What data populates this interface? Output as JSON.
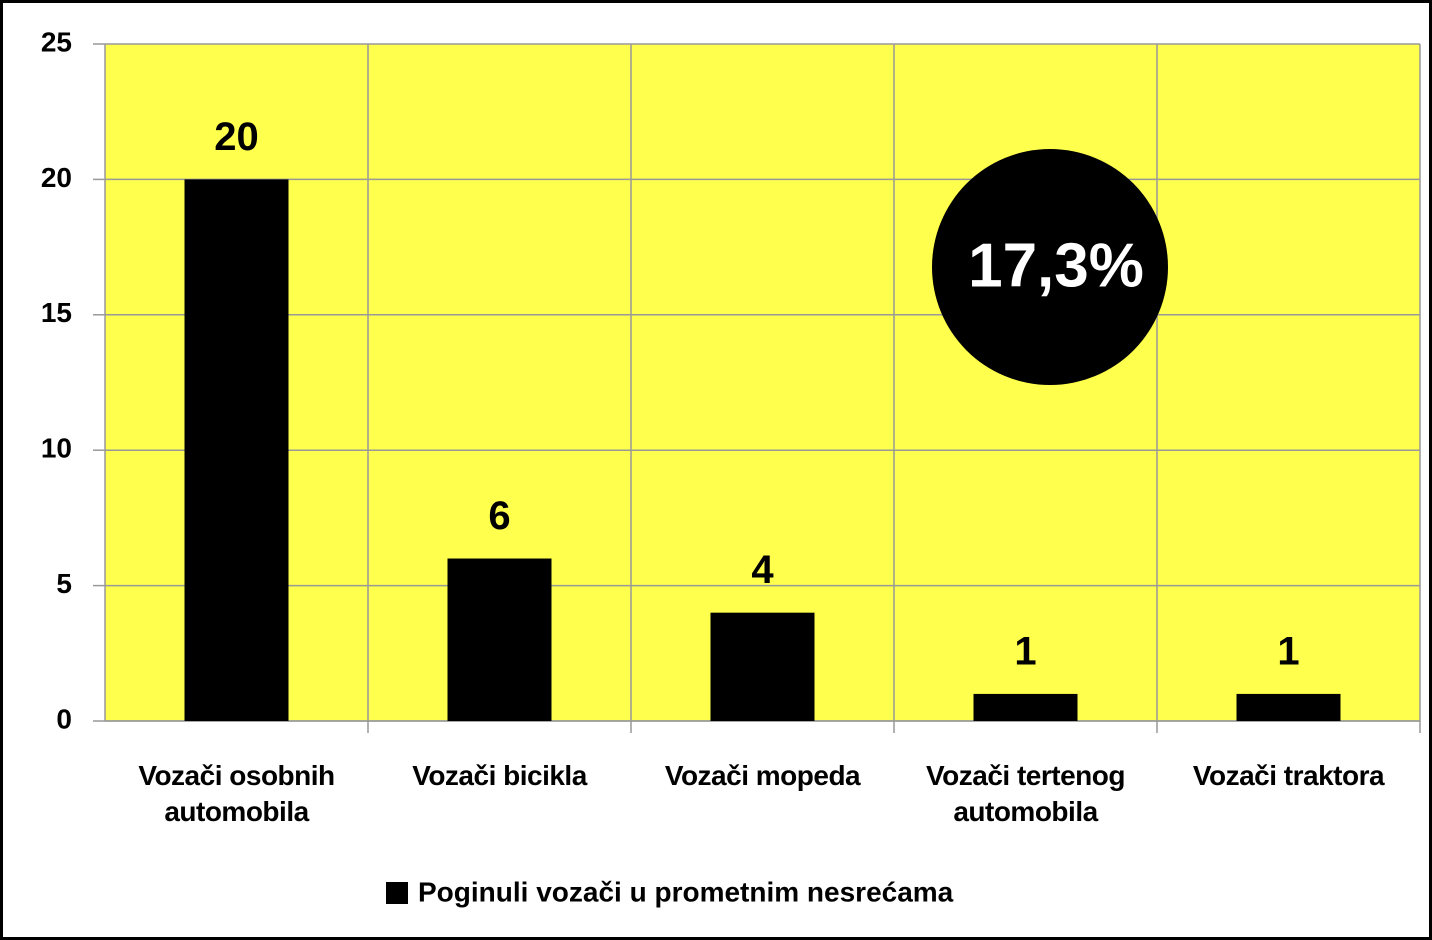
{
  "chart_data": {
    "type": "bar",
    "categories": [
      "Vozači osobnih automobila",
      "Vozači bicikla",
      "Vozači mopeda",
      "Vozači tertenog automobila",
      "Vozači traktora"
    ],
    "series": [
      {
        "name": "Poginuli vozači u prometnim nesrećama",
        "color": "#000000",
        "values": [
          20,
          6,
          4,
          1,
          1
        ]
      }
    ],
    "ylim": [
      0,
      25
    ],
    "yticks": [
      0,
      5,
      10,
      15,
      20,
      25
    ],
    "grid": true,
    "plot_background": "#ffff4d",
    "legend": "bottom",
    "annotation": "17,3%"
  }
}
